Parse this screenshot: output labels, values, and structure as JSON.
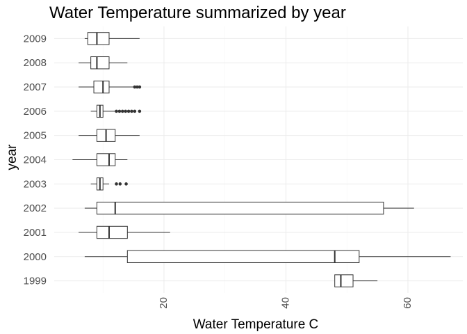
{
  "chart_data": {
    "type": "boxplot",
    "orientation": "horizontal",
    "title": "Water Temperature summarized by year",
    "xlabel": "Water Temperature C",
    "ylabel": "year",
    "xlim": [
      2,
      69
    ],
    "xticks": [
      20,
      40,
      60
    ],
    "xtick_rotation": -90,
    "grid": true,
    "legend": "none",
    "categories": [
      "1999",
      "2000",
      "2001",
      "2002",
      "2003",
      "2004",
      "2005",
      "2006",
      "2007",
      "2008",
      "2009"
    ],
    "boxes": [
      {
        "year": "1999",
        "min": 48,
        "q1": 48,
        "median": 49,
        "q3": 51,
        "max": 55,
        "outliers": []
      },
      {
        "year": "2000",
        "min": 7,
        "q1": 14,
        "median": 48,
        "q3": 52,
        "max": 67,
        "outliers": []
      },
      {
        "year": "2001",
        "min": 6,
        "q1": 9,
        "median": 11,
        "q3": 14,
        "max": 21,
        "outliers": []
      },
      {
        "year": "2002",
        "min": 7,
        "q1": 9,
        "median": 12,
        "q3": 56,
        "max": 61,
        "outliers": []
      },
      {
        "year": "2003",
        "min": 8,
        "q1": 9,
        "median": 9.5,
        "q3": 10,
        "max": 11,
        "outliers": [
          12.2,
          12.8,
          13.8
        ]
      },
      {
        "year": "2004",
        "min": 5,
        "q1": 9,
        "median": 11,
        "q3": 12,
        "max": 14,
        "outliers": []
      },
      {
        "year": "2005",
        "min": 6,
        "q1": 9,
        "median": 10.5,
        "q3": 12,
        "max": 16,
        "outliers": []
      },
      {
        "year": "2006",
        "min": 8,
        "q1": 9,
        "median": 9.5,
        "q3": 10,
        "max": 12,
        "outliers": [
          12.2,
          12.7,
          13.2,
          13.7,
          14.2,
          14.7,
          15.2,
          16
        ]
      },
      {
        "year": "2007",
        "min": 6,
        "q1": 8.5,
        "median": 10,
        "q3": 11,
        "max": 15,
        "outliers": [
          15.2,
          15.6,
          16
        ]
      },
      {
        "year": "2008",
        "min": 6,
        "q1": 8,
        "median": 9,
        "q3": 11,
        "max": 14,
        "outliers": []
      },
      {
        "year": "2009",
        "min": 7,
        "q1": 7.5,
        "median": 9,
        "q3": 11,
        "max": 16,
        "outliers": []
      }
    ]
  }
}
